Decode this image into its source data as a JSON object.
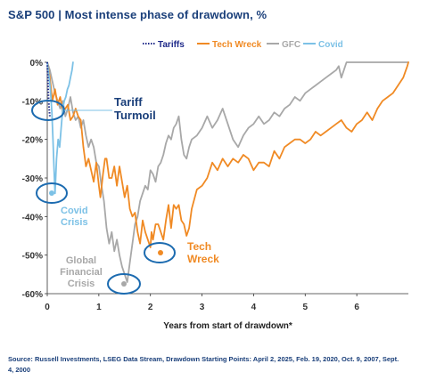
{
  "title": "S&P 500 | Most intense phase of drawdown, %",
  "footer": "Source: Russell Investments, LSEG Data Stream, Drawdown Starting Points: April 2, 2025, Feb. 19, 2020, Oct. 9, 2007, Sept. 4, 2000",
  "colors": {
    "tariffs": "#1f2a8a",
    "tech_wreck": "#f08a24",
    "gfc": "#a8a8a8",
    "covid": "#7cc1e6",
    "navy": "#1a3f7a",
    "circle": "#1c6bb0",
    "tick": "#333333",
    "axis": "#333333"
  },
  "chart_data": {
    "type": "line",
    "title": "S&P 500 | Most intense phase of drawdown, %",
    "xlabel": "Years from start of drawdown*",
    "ylabel": "",
    "xlim": [
      0,
      7.0
    ],
    "ylim": [
      -60,
      0
    ],
    "x_ticks": [
      0,
      1,
      2,
      3,
      4,
      5,
      6
    ],
    "y_ticks": [
      0,
      -10,
      -20,
      -30,
      -40,
      -50,
      -60
    ],
    "y_tick_labels": [
      "0%",
      "-10%",
      "-20%",
      "-30%",
      "-40%",
      "-50%",
      "-60%"
    ],
    "grid": false,
    "legend_position": "top",
    "series": [
      {
        "name": "Tariffs",
        "style": "dotted",
        "x": [
          0,
          0.01,
          0.02,
          0.03,
          0.04,
          0.05
        ],
        "y": [
          0,
          -4,
          -8,
          -10.5,
          -12.5,
          -14
        ]
      },
      {
        "name": "Tech Wreck",
        "style": "solid",
        "x": [
          0,
          0.05,
          0.1,
          0.15,
          0.2,
          0.25,
          0.3,
          0.35,
          0.4,
          0.45,
          0.5,
          0.55,
          0.6,
          0.65,
          0.7,
          0.75,
          0.8,
          0.85,
          0.9,
          0.95,
          1.0,
          1.03,
          1.08,
          1.12,
          1.15,
          1.2,
          1.25,
          1.3,
          1.35,
          1.4,
          1.45,
          1.5,
          1.55,
          1.6,
          1.65,
          1.7,
          1.75,
          1.8,
          1.85,
          1.9,
          1.95,
          2.0,
          2.02,
          2.05,
          2.1,
          2.15,
          2.2,
          2.25,
          2.3,
          2.35,
          2.4,
          2.45,
          2.5,
          2.55,
          2.6,
          2.65,
          2.7,
          2.75,
          2.8,
          2.9,
          3.0,
          3.1,
          3.2,
          3.3,
          3.4,
          3.5,
          3.6,
          3.7,
          3.8,
          3.9,
          4.0,
          4.1,
          4.2,
          4.3,
          4.4,
          4.5,
          4.6,
          4.7,
          4.8,
          4.9,
          5.0,
          5.1,
          5.2,
          5.3,
          5.4,
          5.5,
          5.6,
          5.7,
          5.8,
          5.9,
          6.0,
          6.1,
          6.2,
          6.3,
          6.4,
          6.5,
          6.6,
          6.7,
          6.8,
          6.9,
          6.98,
          7.0
        ],
        "y": [
          0,
          -4,
          -10,
          -7,
          -11,
          -9,
          -13,
          -12,
          -11,
          -15,
          -14,
          -12,
          -14,
          -15,
          -22,
          -27,
          -25,
          -28,
          -31,
          -26,
          -32,
          -35,
          -29,
          -25,
          -25,
          -30,
          -30,
          -27,
          -32,
          -27,
          -31,
          -35,
          -32,
          -38,
          -40,
          -39,
          -44,
          -47,
          -41,
          -44,
          -46,
          -48,
          -44,
          -46,
          -42,
          -42,
          -44,
          -46,
          -41,
          -37,
          -43,
          -37,
          -38,
          -37,
          -41,
          -42,
          -45,
          -43,
          -38,
          -33,
          -32,
          -30,
          -26,
          -28,
          -25,
          -27,
          -25,
          -26,
          -24,
          -25,
          -28,
          -26,
          -26,
          -27,
          -23,
          -25,
          -22,
          -21,
          -20,
          -20,
          -21,
          -20,
          -18,
          -19,
          -18,
          -17,
          -16,
          -15,
          -17,
          -18,
          -16,
          -15,
          -13,
          -15,
          -12,
          -10,
          -9,
          -8,
          -6,
          -4,
          -1,
          0
        ]
      },
      {
        "name": "GFC",
        "style": "solid",
        "x": [
          0,
          0.05,
          0.1,
          0.15,
          0.2,
          0.25,
          0.3,
          0.35,
          0.4,
          0.45,
          0.5,
          0.55,
          0.6,
          0.65,
          0.7,
          0.75,
          0.8,
          0.85,
          0.9,
          0.95,
          1.0,
          1.05,
          1.1,
          1.15,
          1.2,
          1.25,
          1.3,
          1.35,
          1.4,
          1.45,
          1.5,
          1.55,
          1.6,
          1.65,
          1.7,
          1.75,
          1.8,
          1.85,
          1.9,
          1.95,
          2.0,
          2.05,
          2.1,
          2.15,
          2.2,
          2.25,
          2.3,
          2.35,
          2.4,
          2.45,
          2.5,
          2.55,
          2.6,
          2.65,
          2.7,
          2.75,
          2.8,
          2.9,
          3.0,
          3.1,
          3.2,
          3.3,
          3.4,
          3.5,
          3.6,
          3.7,
          3.8,
          3.9,
          4.0,
          4.1,
          4.2,
          4.3,
          4.4,
          4.5,
          4.6,
          4.7,
          4.8,
          4.9,
          5.0,
          5.1,
          5.2,
          5.3,
          5.4,
          5.5,
          5.6,
          5.65,
          5.7,
          5.75,
          5.8,
          7.0
        ],
        "y": [
          0,
          -2,
          -5,
          -8,
          -10,
          -12,
          -10,
          -14,
          -12,
          -9,
          -13,
          -15,
          -14,
          -17,
          -15,
          -19,
          -22,
          -20,
          -22,
          -26,
          -27,
          -32,
          -36,
          -43,
          -47,
          -44,
          -49,
          -46,
          -50,
          -53,
          -55,
          -57,
          -52,
          -47,
          -42,
          -40,
          -36,
          -34,
          -32,
          -33,
          -28,
          -29,
          -31,
          -27,
          -26,
          -24,
          -21,
          -19,
          -20,
          -17,
          -16,
          -14,
          -20,
          -24,
          -25,
          -22,
          -20,
          -19,
          -17,
          -14,
          -17,
          -15,
          -12,
          -16,
          -20,
          -22,
          -19,
          -17,
          -16,
          -14,
          -16,
          -15,
          -13,
          -14,
          -12,
          -11,
          -9,
          -10,
          -8,
          -7,
          -6,
          -5,
          -4,
          -3,
          -2,
          -1,
          -4,
          -2,
          0,
          0
        ]
      },
      {
        "name": "Covid",
        "style": "solid",
        "x": [
          0,
          0.03,
          0.06,
          0.09,
          0.11,
          0.13,
          0.15,
          0.18,
          0.21,
          0.24,
          0.27,
          0.3,
          0.33,
          0.36,
          0.39,
          0.42,
          0.45,
          0.48,
          0.5
        ],
        "y": [
          0,
          -3,
          -7,
          -13,
          -20,
          -27,
          -34,
          -25,
          -20,
          -22,
          -17,
          -12,
          -10,
          -9,
          -7,
          -6,
          -4,
          -2,
          0
        ]
      }
    ],
    "annotations": [
      {
        "label_lines": [
          "Tariff",
          "Turmoil"
        ],
        "series": "Tariffs"
      },
      {
        "label_lines": [
          "Covid",
          "Crisis"
        ],
        "series": "Covid"
      },
      {
        "label_lines": [
          "Global",
          "Financial",
          "Crisis"
        ],
        "series": "GFC"
      },
      {
        "label_lines": [
          "Tech",
          "Wreck"
        ],
        "series": "Tech Wreck"
      }
    ]
  }
}
